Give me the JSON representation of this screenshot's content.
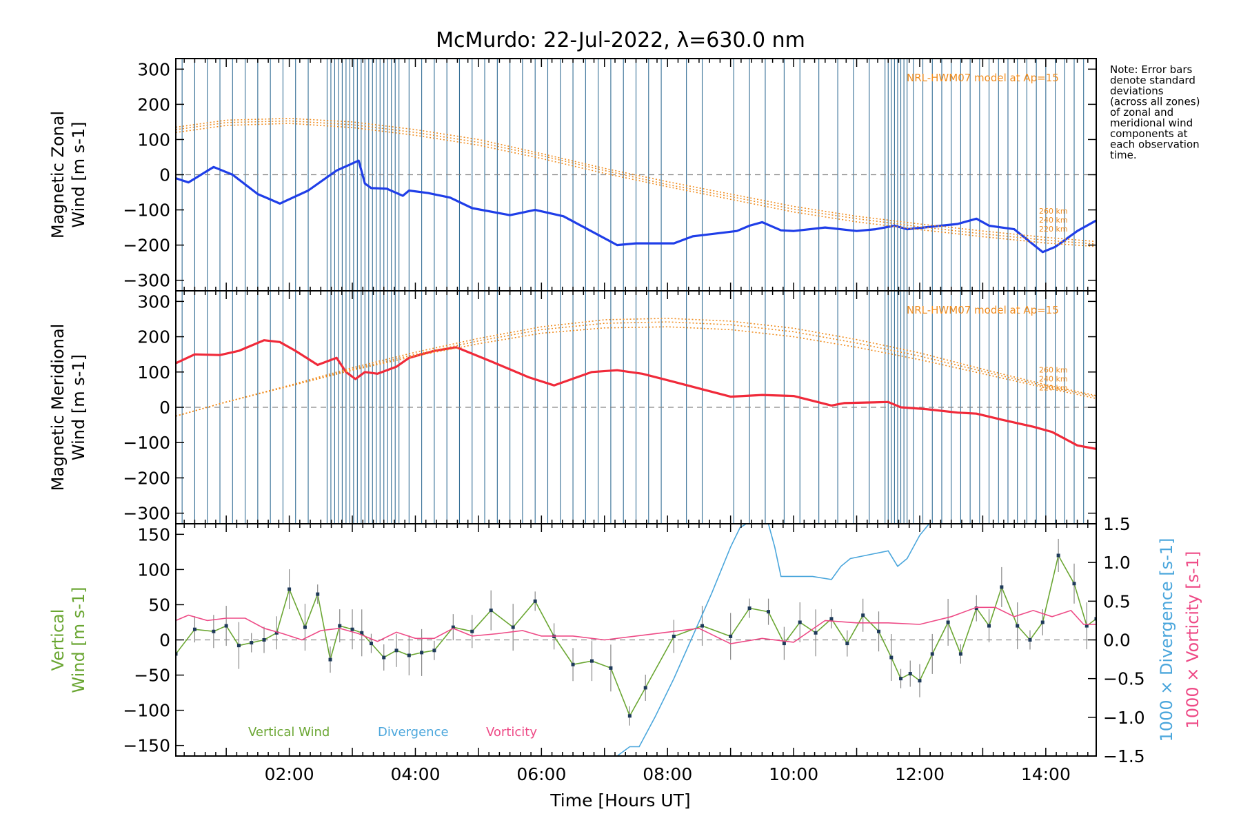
{
  "title": "McMurdo: 22-Jul-2022, λ=630.0 nm",
  "note_lines": [
    "Note: Error bars",
    "denote standard",
    "deviations",
    "(across all zones)",
    "of zonal and",
    "meridional wind",
    "components at",
    "each observation",
    "time."
  ],
  "x_tick_labels": [
    "02:00",
    "04:00",
    "06:00",
    "08:00",
    "10:00",
    "12:00",
    "14:00"
  ],
  "xlabel": "Time [Hours UT]",
  "model_label": "NRL-HWM07 model at Ap=15",
  "model_heights": [
    "260 km",
    "240 km",
    "220 km"
  ],
  "colors": {
    "zonal": "#1f3ee8",
    "meridional": "#f02a3a",
    "vertical": "#6aa632",
    "divergence": "#4aa6dc",
    "vorticity": "#ee4a86",
    "model": "#f08c1e",
    "obs_lines": "#1e5e8a"
  },
  "chart_data": [
    {
      "type": "line",
      "panel": "zonal",
      "ylabel_lines": [
        "Magnetic Zonal",
        "Wind [m s-1]"
      ],
      "ylim": [
        -330,
        330
      ],
      "yticks": [
        300,
        200,
        100,
        0,
        -100,
        -200,
        -300
      ],
      "xlim": [
        0.2,
        14.8
      ],
      "series": [
        {
          "key": "zonal_wind",
          "color": "#1f3ee8",
          "x": [
            0.2,
            0.4,
            0.8,
            1.1,
            1.5,
            1.85,
            2.3,
            2.75,
            3.1,
            3.2,
            3.3,
            3.55,
            3.8,
            3.9,
            4.2,
            4.55,
            4.9,
            5.5,
            5.9,
            6.35,
            7.2,
            7.5,
            8.1,
            8.4,
            9.1,
            9.3,
            9.5,
            9.8,
            10.0,
            10.5,
            11.0,
            11.3,
            11.6,
            11.8,
            12.6,
            12.9,
            13.1,
            13.3,
            13.5,
            13.95,
            14.15,
            14.5,
            14.8
          ],
          "y": [
            -10,
            -22,
            22,
            0,
            -55,
            -82,
            -45,
            12,
            40,
            -25,
            -38,
            -40,
            -60,
            -45,
            -52,
            -65,
            -95,
            -115,
            -100,
            -118,
            -200,
            -195,
            -195,
            -175,
            -160,
            -145,
            -135,
            -158,
            -160,
            -150,
            -160,
            -155,
            -145,
            -155,
            -140,
            -125,
            -145,
            -150,
            -155,
            -220,
            -205,
            -160,
            -130
          ]
        },
        {
          "key": "model_260km",
          "color": "#f08c1e",
          "dotted": true,
          "x": [
            0.2,
            1.0,
            2.0,
            3.0,
            4.0,
            5.0,
            6.0,
            7.0,
            8.0,
            9.0,
            10.0,
            11.0,
            12.0,
            13.0,
            14.0,
            14.8
          ],
          "y": [
            135,
            155,
            160,
            150,
            128,
            100,
            60,
            18,
            -20,
            -55,
            -90,
            -118,
            -140,
            -160,
            -178,
            -190
          ]
        },
        {
          "key": "model_240km",
          "color": "#f08c1e",
          "dotted": true,
          "x": [
            0.2,
            1.0,
            2.0,
            3.0,
            4.0,
            5.0,
            6.0,
            7.0,
            8.0,
            9.0,
            10.0,
            11.0,
            12.0,
            13.0,
            14.0,
            14.8
          ],
          "y": [
            128,
            148,
            153,
            142,
            120,
            92,
            54,
            12,
            -28,
            -62,
            -98,
            -125,
            -148,
            -168,
            -186,
            -197
          ]
        },
        {
          "key": "model_220km",
          "color": "#f08c1e",
          "dotted": true,
          "x": [
            0.2,
            1.0,
            2.0,
            3.0,
            4.0,
            5.0,
            6.0,
            7.0,
            8.0,
            9.0,
            10.0,
            11.0,
            12.0,
            13.0,
            14.0,
            14.8
          ],
          "y": [
            120,
            140,
            146,
            134,
            112,
            84,
            46,
            4,
            -34,
            -70,
            -106,
            -134,
            -156,
            -176,
            -194,
            -204
          ]
        }
      ]
    },
    {
      "type": "line",
      "panel": "meridional",
      "ylabel_lines": [
        "Magnetic Meridional",
        "Wind [m s-1]"
      ],
      "ylim": [
        -330,
        330
      ],
      "yticks": [
        300,
        200,
        100,
        0,
        -100,
        -200,
        -300
      ],
      "xlim": [
        0.2,
        14.8
      ],
      "series": [
        {
          "key": "meridional_wind",
          "color": "#f02a3a",
          "x": [
            0.2,
            0.5,
            0.9,
            1.2,
            1.6,
            1.85,
            2.1,
            2.45,
            2.75,
            2.9,
            3.05,
            3.2,
            3.4,
            3.7,
            3.9,
            4.3,
            4.65,
            5.2,
            5.8,
            6.2,
            6.8,
            7.2,
            7.6,
            8.1,
            9.0,
            9.5,
            10.0,
            10.6,
            10.8,
            11.5,
            11.7,
            12.1,
            12.6,
            12.9,
            13.3,
            13.8,
            14.1,
            14.5,
            14.8
          ],
          "y": [
            125,
            150,
            148,
            160,
            190,
            185,
            160,
            120,
            140,
            100,
            80,
            100,
            95,
            115,
            140,
            160,
            170,
            130,
            85,
            62,
            100,
            105,
            95,
            72,
            30,
            35,
            32,
            5,
            12,
            15,
            0,
            -5,
            -15,
            -18,
            -35,
            -55,
            -70,
            -108,
            -118
          ]
        },
        {
          "key": "model_260km",
          "color": "#f08c1e",
          "dotted": true,
          "x": [
            0.2,
            1.0,
            2.0,
            3.0,
            4.0,
            5.0,
            6.0,
            7.0,
            8.0,
            9.0,
            10.0,
            11.0,
            12.0,
            13.0,
            14.0,
            14.8
          ],
          "y": [
            -25,
            15,
            60,
            105,
            145,
            180,
            210,
            225,
            228,
            220,
            200,
            170,
            135,
            95,
            55,
            25
          ]
        },
        {
          "key": "model_240km",
          "color": "#f08c1e",
          "dotted": true,
          "x": [
            0.2,
            1.0,
            2.0,
            3.0,
            4.0,
            5.0,
            6.0,
            7.0,
            8.0,
            9.0,
            10.0,
            11.0,
            12.0,
            13.0,
            14.0,
            14.8
          ],
          "y": [
            -25,
            15,
            60,
            108,
            150,
            188,
            220,
            238,
            242,
            234,
            214,
            182,
            145,
            102,
            60,
            30
          ]
        },
        {
          "key": "model_220km",
          "color": "#f08c1e",
          "dotted": true,
          "x": [
            0.2,
            1.0,
            2.0,
            3.0,
            4.0,
            5.0,
            6.0,
            7.0,
            8.0,
            9.0,
            10.0,
            11.0,
            12.0,
            13.0,
            14.0,
            14.8
          ],
          "y": [
            -25,
            15,
            62,
            112,
            156,
            195,
            228,
            248,
            252,
            244,
            224,
            192,
            154,
            108,
            64,
            33
          ]
        }
      ]
    },
    {
      "type": "line",
      "panel": "vertical",
      "ylabel_left_lines": [
        "Vertical",
        "Wind [m s-1]"
      ],
      "ylabel_right1": "1000 × Divergence [s-1]",
      "ylabel_right2": "1000 × Vorticity [s-1]",
      "ylim": [
        -165,
        165
      ],
      "yticks": [
        150,
        100,
        50,
        0,
        -50,
        -100,
        -150
      ],
      "right_ylim": [
        -1.5,
        1.5
      ],
      "right_yticks": [
        "1.5",
        "1.0",
        "0.5",
        "0.0",
        "-0.5",
        "-1.0",
        "-1.5"
      ],
      "xlim": [
        0.2,
        14.8
      ],
      "legend": [
        "Vertical Wind",
        "Divergence",
        "Vorticity"
      ],
      "series": [
        {
          "key": "vertical_wind",
          "color": "#6aa632",
          "x": [
            0.2,
            0.5,
            0.8,
            1.0,
            1.2,
            1.4,
            1.6,
            1.8,
            2.0,
            2.25,
            2.45,
            2.65,
            2.8,
            3.0,
            3.15,
            3.3,
            3.5,
            3.7,
            3.9,
            4.1,
            4.3,
            4.6,
            4.9,
            5.2,
            5.55,
            5.9,
            6.2,
            6.5,
            6.8,
            7.1,
            7.4,
            7.65,
            8.1,
            8.55,
            9.0,
            9.3,
            9.6,
            9.85,
            10.1,
            10.35,
            10.6,
            10.85,
            11.1,
            11.35,
            11.55,
            11.7,
            11.85,
            12.0,
            12.2,
            12.45,
            12.65,
            12.9,
            13.1,
            13.3,
            13.55,
            13.75,
            13.95,
            14.2,
            14.45,
            14.65,
            14.8
          ],
          "y": [
            -20,
            15,
            12,
            20,
            -8,
            -4,
            0,
            10,
            72,
            18,
            65,
            -28,
            20,
            15,
            10,
            -5,
            -25,
            -15,
            -22,
            -18,
            -15,
            18,
            12,
            42,
            18,
            55,
            5,
            -35,
            -30,
            -40,
            -108,
            -68,
            5,
            20,
            5,
            45,
            40,
            -5,
            25,
            10,
            30,
            -5,
            35,
            12,
            -25,
            -55,
            -48,
            -58,
            -20,
            25,
            -20,
            45,
            20,
            75,
            20,
            0,
            25,
            120,
            80,
            20,
            30
          ]
        },
        {
          "key": "divergence_x1000",
          "color": "#4aa6dc",
          "axis": "right",
          "segments": [
            {
              "x": [
                7.2,
                7.4,
                7.55,
                7.8,
                8.1,
                8.4,
                8.7,
                9.0,
                9.15,
                9.25
              ],
              "y": [
                -1.5,
                -1.38,
                -1.38,
                -1.0,
                -0.5,
                0.05,
                0.6,
                1.2,
                1.45,
                1.5
              ]
            },
            {
              "x": [
                9.6,
                9.7,
                9.8,
                10.0,
                10.3,
                10.6,
                10.75,
                10.9,
                11.2,
                11.5,
                11.65,
                11.8,
                12.0,
                12.15
              ],
              "y": [
                1.5,
                1.2,
                0.82,
                0.82,
                0.82,
                0.78,
                0.95,
                1.05,
                1.1,
                1.15,
                0.95,
                1.05,
                1.35,
                1.5
              ]
            }
          ]
        },
        {
          "key": "vorticity_x1000",
          "color": "#ee4a86",
          "axis": "right",
          "x": [
            0.2,
            0.4,
            0.7,
            1.0,
            1.3,
            1.6,
            1.9,
            2.2,
            2.5,
            2.8,
            3.1,
            3.4,
            3.7,
            4.0,
            4.3,
            4.6,
            4.9,
            5.3,
            5.7,
            6.0,
            6.5,
            7.0,
            7.5,
            8.0,
            8.5,
            9.0,
            9.5,
            10.0,
            10.5,
            11.0,
            11.5,
            12.0,
            12.5,
            12.9,
            13.2,
            13.5,
            13.8,
            14.1,
            14.4,
            14.6,
            14.8
          ],
          "y": [
            0.25,
            0.32,
            0.25,
            0.28,
            0.28,
            0.15,
            0.08,
            0.0,
            0.12,
            0.15,
            0.08,
            -0.02,
            0.1,
            0.02,
            0.02,
            0.15,
            0.05,
            0.08,
            0.12,
            0.05,
            0.05,
            0.0,
            0.05,
            0.1,
            0.15,
            -0.05,
            0.02,
            -0.03,
            0.25,
            0.22,
            0.22,
            0.2,
            0.3,
            0.42,
            0.42,
            0.3,
            0.38,
            0.3,
            0.38,
            0.2,
            0.2
          ]
        }
      ]
    }
  ]
}
